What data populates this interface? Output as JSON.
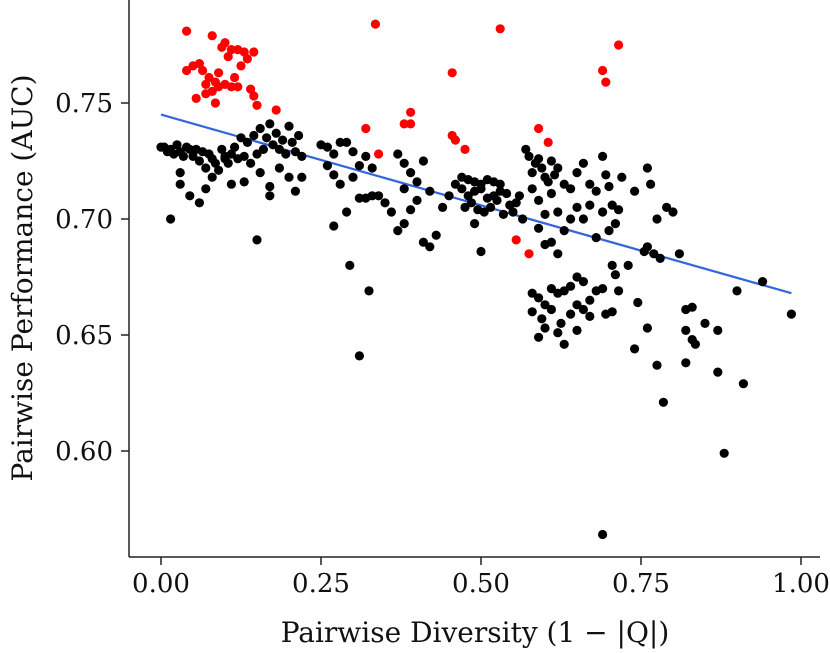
{
  "chart_data": {
    "type": "scatter",
    "title": "",
    "xlabel": "Pairwise Diversity (1 − |Q|)",
    "ylabel": "Pairwise Performance (AUC)",
    "xlim": [
      -0.05,
      1.04
    ],
    "ylim": [
      0.55,
      0.785
    ],
    "x_ticks": [
      0.0,
      0.25,
      0.5,
      0.75,
      1.0
    ],
    "x_tick_labels": [
      "0.00",
      "0.25",
      "0.50",
      "0.75",
      "1.00"
    ],
    "y_ticks": [
      0.6,
      0.65,
      0.7,
      0.75
    ],
    "y_tick_labels": [
      "0.60",
      "0.65",
      "0.70",
      "0.75"
    ],
    "grid": false,
    "colors": {
      "black_series": "#000000",
      "red_series": "#ff0000",
      "trend": "#3366dd"
    },
    "trend_line": {
      "x": [
        0.0,
        0.985
      ],
      "y": [
        0.745,
        0.668
      ]
    },
    "series": [
      {
        "name": "black",
        "points": [
          [
            0.0,
            0.731
          ],
          [
            0.005,
            0.731
          ],
          [
            0.01,
            0.729
          ],
          [
            0.015,
            0.73
          ],
          [
            0.02,
            0.728
          ],
          [
            0.025,
            0.732
          ],
          [
            0.03,
            0.729
          ],
          [
            0.035,
            0.727
          ],
          [
            0.04,
            0.731
          ],
          [
            0.045,
            0.73
          ],
          [
            0.05,
            0.727
          ],
          [
            0.055,
            0.73
          ],
          [
            0.06,
            0.725
          ],
          [
            0.065,
            0.729
          ],
          [
            0.07,
            0.722
          ],
          [
            0.075,
            0.728
          ],
          [
            0.08,
            0.726
          ],
          [
            0.085,
            0.724
          ],
          [
            0.09,
            0.721
          ],
          [
            0.095,
            0.73
          ],
          [
            0.1,
            0.727
          ],
          [
            0.105,
            0.724
          ],
          [
            0.11,
            0.728
          ],
          [
            0.115,
            0.731
          ],
          [
            0.12,
            0.726
          ],
          [
            0.125,
            0.735
          ],
          [
            0.13,
            0.727
          ],
          [
            0.135,
            0.733
          ],
          [
            0.14,
            0.724
          ],
          [
            0.145,
            0.736
          ],
          [
            0.15,
            0.728
          ],
          [
            0.155,
            0.739
          ],
          [
            0.16,
            0.73
          ],
          [
            0.165,
            0.735
          ],
          [
            0.17,
            0.741
          ],
          [
            0.175,
            0.732
          ],
          [
            0.18,
            0.737
          ],
          [
            0.185,
            0.73
          ],
          [
            0.19,
            0.734
          ],
          [
            0.195,
            0.728
          ],
          [
            0.2,
            0.74
          ],
          [
            0.205,
            0.733
          ],
          [
            0.21,
            0.729
          ],
          [
            0.215,
            0.736
          ],
          [
            0.22,
            0.727
          ],
          [
            0.03,
            0.72
          ],
          [
            0.03,
            0.715
          ],
          [
            0.045,
            0.71
          ],
          [
            0.06,
            0.707
          ],
          [
            0.07,
            0.713
          ],
          [
            0.08,
            0.718
          ],
          [
            0.1,
            0.726
          ],
          [
            0.13,
            0.716
          ],
          [
            0.155,
            0.72
          ],
          [
            0.17,
            0.714
          ],
          [
            0.185,
            0.722
          ],
          [
            0.2,
            0.718
          ],
          [
            0.22,
            0.718
          ],
          [
            0.21,
            0.712
          ],
          [
            0.015,
            0.7
          ],
          [
            0.11,
            0.715
          ],
          [
            0.15,
            0.691
          ],
          [
            0.17,
            0.71
          ],
          [
            0.25,
            0.732
          ],
          [
            0.26,
            0.731
          ],
          [
            0.27,
            0.728
          ],
          [
            0.28,
            0.733
          ],
          [
            0.29,
            0.733
          ],
          [
            0.3,
            0.729
          ],
          [
            0.26,
            0.723
          ],
          [
            0.27,
            0.719
          ],
          [
            0.28,
            0.715
          ],
          [
            0.31,
            0.723
          ],
          [
            0.32,
            0.727
          ],
          [
            0.33,
            0.722
          ],
          [
            0.3,
            0.718
          ],
          [
            0.31,
            0.709
          ],
          [
            0.32,
            0.709
          ],
          [
            0.33,
            0.71
          ],
          [
            0.34,
            0.71
          ],
          [
            0.35,
            0.707
          ],
          [
            0.36,
            0.703
          ],
          [
            0.29,
            0.703
          ],
          [
            0.27,
            0.697
          ],
          [
            0.295,
            0.68
          ],
          [
            0.325,
            0.669
          ],
          [
            0.31,
            0.641
          ],
          [
            0.37,
            0.728
          ],
          [
            0.38,
            0.724
          ],
          [
            0.39,
            0.72
          ],
          [
            0.4,
            0.716
          ],
          [
            0.41,
            0.725
          ],
          [
            0.42,
            0.712
          ],
          [
            0.38,
            0.713
          ],
          [
            0.39,
            0.704
          ],
          [
            0.4,
            0.708
          ],
          [
            0.37,
            0.695
          ],
          [
            0.38,
            0.698
          ],
          [
            0.41,
            0.69
          ],
          [
            0.42,
            0.688
          ],
          [
            0.43,
            0.693
          ],
          [
            0.44,
            0.705
          ],
          [
            0.45,
            0.71
          ],
          [
            0.46,
            0.715
          ],
          [
            0.47,
            0.718
          ],
          [
            0.48,
            0.717
          ],
          [
            0.49,
            0.716
          ],
          [
            0.5,
            0.715
          ],
          [
            0.51,
            0.717
          ],
          [
            0.52,
            0.716
          ],
          [
            0.53,
            0.715
          ],
          [
            0.47,
            0.713
          ],
          [
            0.48,
            0.71
          ],
          [
            0.49,
            0.712
          ],
          [
            0.5,
            0.713
          ],
          [
            0.51,
            0.709
          ],
          [
            0.52,
            0.71
          ],
          [
            0.53,
            0.712
          ],
          [
            0.54,
            0.711
          ],
          [
            0.475,
            0.705
          ],
          [
            0.485,
            0.707
          ],
          [
            0.495,
            0.704
          ],
          [
            0.505,
            0.703
          ],
          [
            0.515,
            0.705
          ],
          [
            0.525,
            0.708
          ],
          [
            0.535,
            0.702
          ],
          [
            0.545,
            0.706
          ],
          [
            0.555,
            0.707
          ],
          [
            0.56,
            0.71
          ],
          [
            0.49,
            0.698
          ],
          [
            0.5,
            0.686
          ],
          [
            0.55,
            0.703
          ],
          [
            0.565,
            0.7
          ],
          [
            0.57,
            0.73
          ],
          [
            0.575,
            0.727
          ],
          [
            0.58,
            0.72
          ],
          [
            0.585,
            0.724
          ],
          [
            0.59,
            0.726
          ],
          [
            0.595,
            0.722
          ],
          [
            0.6,
            0.718
          ],
          [
            0.605,
            0.716
          ],
          [
            0.61,
            0.725
          ],
          [
            0.615,
            0.719
          ],
          [
            0.62,
            0.722
          ],
          [
            0.63,
            0.715
          ],
          [
            0.64,
            0.713
          ],
          [
            0.65,
            0.72
          ],
          [
            0.66,
            0.724
          ],
          [
            0.67,
            0.715
          ],
          [
            0.68,
            0.712
          ],
          [
            0.58,
            0.713
          ],
          [
            0.59,
            0.708
          ],
          [
            0.6,
            0.702
          ],
          [
            0.61,
            0.711
          ],
          [
            0.62,
            0.703
          ],
          [
            0.63,
            0.695
          ],
          [
            0.64,
            0.7
          ],
          [
            0.65,
            0.705
          ],
          [
            0.66,
            0.7
          ],
          [
            0.67,
            0.706
          ],
          [
            0.68,
            0.692
          ],
          [
            0.59,
            0.696
          ],
          [
            0.6,
            0.689
          ],
          [
            0.61,
            0.69
          ],
          [
            0.62,
            0.685
          ],
          [
            0.58,
            0.668
          ],
          [
            0.59,
            0.666
          ],
          [
            0.6,
            0.663
          ],
          [
            0.61,
            0.67
          ],
          [
            0.62,
            0.668
          ],
          [
            0.63,
            0.669
          ],
          [
            0.64,
            0.671
          ],
          [
            0.65,
            0.675
          ],
          [
            0.66,
            0.673
          ],
          [
            0.67,
            0.665
          ],
          [
            0.68,
            0.669
          ],
          [
            0.69,
            0.67
          ],
          [
            0.58,
            0.66
          ],
          [
            0.595,
            0.657
          ],
          [
            0.6,
            0.653
          ],
          [
            0.61,
            0.661
          ],
          [
            0.625,
            0.655
          ],
          [
            0.64,
            0.659
          ],
          [
            0.65,
            0.663
          ],
          [
            0.66,
            0.661
          ],
          [
            0.67,
            0.658
          ],
          [
            0.59,
            0.649
          ],
          [
            0.62,
            0.651
          ],
          [
            0.63,
            0.646
          ],
          [
            0.65,
            0.652
          ],
          [
            0.69,
            0.727
          ],
          [
            0.695,
            0.719
          ],
          [
            0.7,
            0.714
          ],
          [
            0.705,
            0.706
          ],
          [
            0.71,
            0.698
          ],
          [
            0.715,
            0.704
          ],
          [
            0.72,
            0.718
          ],
          [
            0.69,
            0.703
          ],
          [
            0.7,
            0.695
          ],
          [
            0.705,
            0.68
          ],
          [
            0.71,
            0.676
          ],
          [
            0.695,
            0.659
          ],
          [
            0.705,
            0.66
          ],
          [
            0.715,
            0.669
          ],
          [
            0.73,
            0.68
          ],
          [
            0.74,
            0.712
          ],
          [
            0.76,
            0.722
          ],
          [
            0.765,
            0.715
          ],
          [
            0.77,
            0.685
          ],
          [
            0.775,
            0.7
          ],
          [
            0.78,
            0.683
          ],
          [
            0.79,
            0.705
          ],
          [
            0.8,
            0.703
          ],
          [
            0.81,
            0.685
          ],
          [
            0.76,
            0.688
          ],
          [
            0.755,
            0.686
          ],
          [
            0.745,
            0.664
          ],
          [
            0.76,
            0.653
          ],
          [
            0.74,
            0.644
          ],
          [
            0.775,
            0.637
          ],
          [
            0.785,
            0.621
          ],
          [
            0.82,
            0.661
          ],
          [
            0.83,
            0.662
          ],
          [
            0.82,
            0.652
          ],
          [
            0.835,
            0.646
          ],
          [
            0.83,
            0.648
          ],
          [
            0.85,
            0.655
          ],
          [
            0.87,
            0.652
          ],
          [
            0.82,
            0.638
          ],
          [
            0.87,
            0.634
          ],
          [
            0.9,
            0.669
          ],
          [
            0.91,
            0.629
          ],
          [
            0.88,
            0.599
          ],
          [
            0.94,
            0.673
          ],
          [
            0.985,
            0.659
          ],
          [
            0.69,
            0.564
          ]
        ]
      },
      {
        "name": "red",
        "points": [
          [
            0.04,
            0.781
          ],
          [
            0.04,
            0.764
          ],
          [
            0.05,
            0.766
          ],
          [
            0.055,
            0.752
          ],
          [
            0.06,
            0.767
          ],
          [
            0.065,
            0.764
          ],
          [
            0.07,
            0.758
          ],
          [
            0.07,
            0.754
          ],
          [
            0.075,
            0.761
          ],
          [
            0.08,
            0.779
          ],
          [
            0.08,
            0.755
          ],
          [
            0.085,
            0.759
          ],
          [
            0.085,
            0.75
          ],
          [
            0.09,
            0.763
          ],
          [
            0.09,
            0.757
          ],
          [
            0.095,
            0.774
          ],
          [
            0.1,
            0.776
          ],
          [
            0.1,
            0.758
          ],
          [
            0.105,
            0.77
          ],
          [
            0.11,
            0.773
          ],
          [
            0.11,
            0.757
          ],
          [
            0.115,
            0.761
          ],
          [
            0.12,
            0.773
          ],
          [
            0.12,
            0.757
          ],
          [
            0.125,
            0.766
          ],
          [
            0.13,
            0.772
          ],
          [
            0.135,
            0.769
          ],
          [
            0.14,
            0.756
          ],
          [
            0.145,
            0.772
          ],
          [
            0.145,
            0.753
          ],
          [
            0.15,
            0.749
          ],
          [
            0.18,
            0.747
          ],
          [
            0.32,
            0.739
          ],
          [
            0.335,
            0.784
          ],
          [
            0.34,
            0.728
          ],
          [
            0.38,
            0.741
          ],
          [
            0.39,
            0.741
          ],
          [
            0.39,
            0.746
          ],
          [
            0.455,
            0.763
          ],
          [
            0.455,
            0.736
          ],
          [
            0.46,
            0.734
          ],
          [
            0.475,
            0.73
          ],
          [
            0.53,
            0.782
          ],
          [
            0.555,
            0.691
          ],
          [
            0.575,
            0.685
          ],
          [
            0.59,
            0.739
          ],
          [
            0.605,
            0.733
          ],
          [
            0.69,
            0.764
          ],
          [
            0.695,
            0.759
          ],
          [
            0.715,
            0.775
          ]
        ]
      }
    ]
  }
}
